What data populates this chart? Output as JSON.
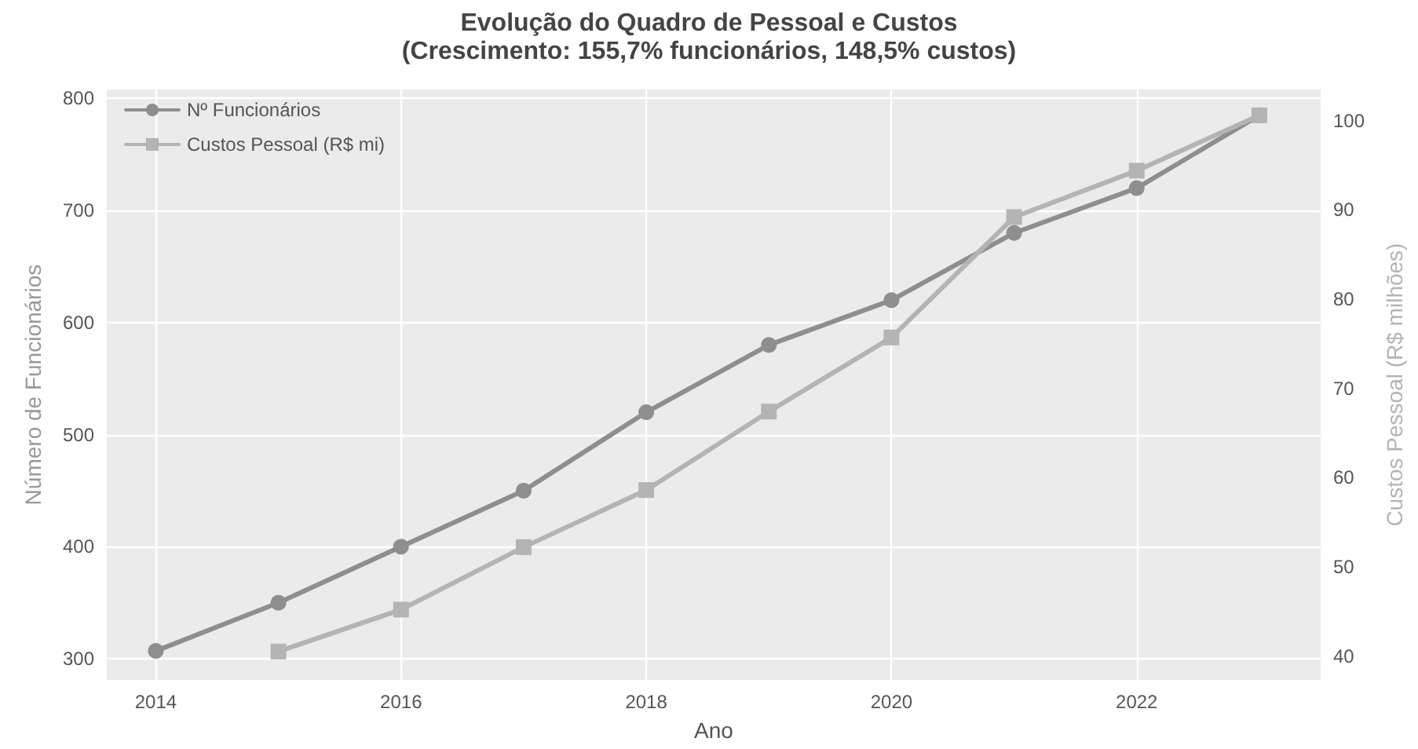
{
  "chart_data": {
    "type": "line",
    "title": "Evolução do Quadro de Pessoal e Custos",
    "subtitle": "(Crescimento: 155,7% funcionários, 148,5% custos)",
    "xlabel": "Ano",
    "ylabel": "Número de Funcionários",
    "y2label": "Custos Pessoal (R$ milhões)",
    "x": [
      2014,
      2015,
      2016,
      2017,
      2018,
      2019,
      2020,
      2021,
      2022,
      2023
    ],
    "series": [
      {
        "name": "Nº Funcionários",
        "color": "#8e8e8e",
        "marker": "circle",
        "values": [
          307,
          350,
          400,
          450,
          520,
          580,
          620,
          680,
          720,
          785
        ]
      },
      {
        "name": "Custos Pessoal (R$ mi)",
        "color": "#b4b4b4",
        "marker": "square",
        "axis": "y2",
        "x": [
          2015,
          2016,
          2017,
          2018,
          2019,
          2020,
          2021,
          2022,
          2023
        ],
        "values": [
          40.5,
          45.2,
          52.2,
          58.6,
          67.4,
          75.7,
          89.2,
          94.4,
          100.6
        ]
      }
    ],
    "xlim": [
      2013.6,
      2023.5
    ],
    "xticks": [
      2014,
      2016,
      2018,
      2020,
      2022
    ],
    "ylim": [
      281,
      808
    ],
    "yticks": [
      300,
      400,
      500,
      600,
      700,
      800
    ],
    "y2lim": [
      37.3,
      103.5
    ],
    "y2ticks": [
      40,
      50,
      60,
      70,
      80,
      90,
      100
    ],
    "grid": true,
    "legend": "top left",
    "line_style": "solid"
  }
}
